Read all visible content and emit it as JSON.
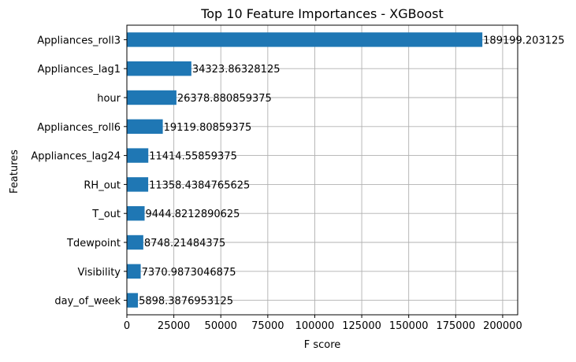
{
  "chart_data": {
    "type": "bar",
    "orientation": "horizontal",
    "title": "Top 10 Feature Importances - XGBoost",
    "xlabel": "F score",
    "ylabel": "Features",
    "xlim": [
      0,
      208000
    ],
    "xticks": [
      0,
      25000,
      50000,
      75000,
      100000,
      125000,
      150000,
      175000,
      200000
    ],
    "grid": true,
    "bar_color": "#1f77b4",
    "categories": [
      "Appliances_roll3",
      "Appliances_lag1",
      "hour",
      "Appliances_roll6",
      "Appliances_lag24",
      "RH_out",
      "T_out",
      "Tdewpoint",
      "Visibility",
      "day_of_week"
    ],
    "values": [
      189199.203125,
      34323.86328125,
      26378.880859375,
      19119.80859375,
      11414.55859375,
      11358.4384765625,
      9444.8212890625,
      8748.21484375,
      7370.9873046875,
      5898.3876953125
    ],
    "data_labels": [
      "189199.203125",
      "34323.86328125",
      "26378.880859375",
      "19119.80859375",
      "11414.55859375",
      "11358.4384765625",
      "9444.8212890625",
      "8748.21484375",
      "7370.9873046875",
      "5898.3876953125"
    ]
  }
}
